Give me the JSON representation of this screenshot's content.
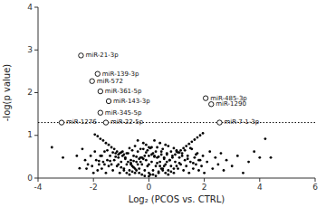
{
  "chart_data": {
    "type": "scatter",
    "xlabel": "Log₂ (PCOS vs. CTRL)",
    "ylabel": "-log(p value)",
    "xlim": [
      -4,
      6
    ],
    "ylim": [
      0,
      4
    ],
    "xticks": [
      -4,
      -2,
      0,
      2,
      4,
      6
    ],
    "yticks": [
      0,
      1,
      2,
      3,
      4
    ],
    "grid": false,
    "threshold": 1.3,
    "series": [
      {
        "color": "#000000",
        "marker": "dot",
        "x": [
          -3.5,
          -3.1,
          -2.6,
          -2.5,
          -2.4,
          -2.3,
          -2.25,
          -2.2,
          -2.1,
          -2.05,
          -2.0,
          -1.95,
          -1.9,
          -1.85,
          -1.8,
          -1.75,
          -1.7,
          -1.65,
          -1.6,
          -1.55,
          -1.5,
          -1.45,
          -1.4,
          -1.35,
          -1.3,
          -1.25,
          -1.2,
          -1.15,
          -1.1,
          -1.05,
          -1.0,
          -0.95,
          -0.9,
          -0.85,
          -0.8,
          -0.75,
          -0.7,
          -0.65,
          -0.6,
          -0.55,
          -0.5,
          -0.45,
          -0.4,
          -0.35,
          -0.3,
          -0.25,
          -0.2,
          -0.15,
          -0.1,
          -0.05,
          0.0,
          0.0,
          0.0,
          0.05,
          0.1,
          0.15,
          0.2,
          0.25,
          0.3,
          0.35,
          0.4,
          0.45,
          0.5,
          0.55,
          0.6,
          0.65,
          0.7,
          0.75,
          0.8,
          0.85,
          0.9,
          0.95,
          1.0,
          1.05,
          1.1,
          1.15,
          1.2,
          1.25,
          1.3,
          1.35,
          1.4,
          1.45,
          1.5,
          1.55,
          1.6,
          1.65,
          1.7,
          1.75,
          1.8,
          1.85,
          1.9,
          1.95,
          2.0,
          2.1,
          2.2,
          2.3,
          2.4,
          2.5,
          2.6,
          2.7,
          2.8,
          3.0,
          3.2,
          3.4,
          3.6,
          3.8,
          4.0,
          4.2,
          4.4,
          -0.1,
          0.1,
          -0.2,
          0.2,
          0.3,
          -0.3,
          0.4,
          -0.4,
          0.5,
          -0.5,
          0.6,
          -0.6,
          0.7,
          -0.7,
          0.8,
          -0.8,
          0.9,
          -0.9,
          1.0,
          -1.0,
          -0.15,
          0.15,
          -0.25,
          0.25,
          0.35,
          -0.35,
          0.45,
          -0.45,
          0.55,
          -0.55,
          0.65,
          -0.65,
          1.1,
          -1.1,
          1.2,
          -1.2,
          1.3,
          -1.3,
          1.4,
          -1.4,
          1.5,
          -1.5,
          1.6,
          -1.6,
          1.7,
          -1.7,
          1.8,
          -1.8,
          0.0,
          0.0,
          -0.05,
          0.05,
          -0.1,
          0.1,
          -0.2,
          0.2,
          -0.3,
          0.3,
          -0.4,
          0.4,
          -0.5,
          0.5,
          -0.6,
          0.6,
          -0.7,
          0.7,
          -0.8,
          0.8,
          -0.9,
          0.9,
          -1.0,
          1.0,
          -1.1,
          1.1,
          -0.15,
          0.15,
          -0.25,
          0.25,
          -0.35,
          0.35,
          -0.45,
          0.45,
          -0.55,
          0.55,
          -0.65,
          0.65,
          -0.75,
          0.75,
          -0.85,
          0.85,
          -0.95,
          0.95,
          -1.05,
          1.05,
          -1.15,
          1.15,
          -1.25,
          1.25,
          -1.35,
          1.35,
          -1.45,
          1.45,
          -1.55,
          1.55,
          -1.65,
          1.65,
          -1.75,
          1.75,
          -1.85,
          1.85,
          -1.95,
          1.95
        ],
        "values": [
          0.72,
          0.48,
          0.52,
          0.23,
          0.68,
          0.42,
          0.22,
          0.32,
          0.52,
          0.28,
          0.12,
          0.62,
          0.42,
          0.18,
          0.32,
          0.52,
          0.22,
          0.38,
          0.62,
          0.12,
          0.42,
          0.28,
          0.52,
          0.32,
          0.18,
          0.42,
          0.58,
          0.28,
          0.48,
          0.12,
          0.38,
          0.62,
          0.22,
          0.48,
          0.32,
          0.58,
          0.18,
          0.42,
          0.28,
          0.52,
          0.12,
          0.38,
          0.62,
          0.22,
          0.48,
          0.32,
          0.68,
          0.18,
          0.42,
          0.28,
          0.04,
          0.12,
          0.32,
          0.08,
          0.38,
          0.18,
          0.52,
          0.28,
          0.48,
          0.12,
          0.38,
          0.62,
          0.22,
          0.48,
          0.32,
          0.58,
          0.18,
          0.42,
          0.28,
          0.52,
          0.12,
          0.38,
          0.62,
          0.22,
          0.48,
          0.32,
          0.58,
          0.18,
          0.42,
          0.28,
          0.52,
          0.12,
          0.38,
          0.68,
          0.22,
          0.48,
          0.32,
          0.58,
          0.18,
          0.42,
          0.28,
          0.52,
          0.12,
          0.38,
          0.62,
          0.22,
          0.48,
          0.32,
          0.58,
          0.18,
          0.42,
          0.28,
          0.52,
          0.12,
          0.38,
          0.62,
          0.48,
          0.92,
          0.48,
          0.78,
          0.72,
          0.82,
          0.88,
          0.72,
          0.68,
          0.82,
          0.88,
          0.68,
          0.75,
          0.78,
          0.65,
          0.75,
          0.7,
          0.62,
          0.58,
          0.7,
          0.55,
          0.65,
          0.6,
          0.52,
          0.58,
          0.48,
          0.62,
          0.5,
          0.45,
          0.55,
          0.5,
          0.45,
          0.4,
          0.55,
          0.35,
          0.6,
          0.55,
          0.52,
          0.5,
          0.65,
          0.6,
          0.45,
          0.4,
          0.7,
          0.65,
          0.35,
          0.32,
          0.55,
          0.52,
          0.42,
          0.4,
          0.52,
          0.72,
          0.65,
          0.7,
          0.6,
          0.55,
          0.45,
          0.5,
          0.38,
          0.35,
          0.32,
          0.28,
          0.22,
          0.18,
          0.15,
          0.12,
          0.08,
          0.08,
          0.12,
          0.15,
          0.18,
          0.22,
          0.25,
          0.28,
          0.32,
          0.35,
          0.05,
          0.08,
          0.08,
          0.05,
          0.12,
          0.15,
          0.18,
          0.22,
          0.25,
          0.28,
          0.32,
          0.38,
          0.38,
          0.42,
          0.45,
          0.48,
          0.52,
          0.55,
          0.58,
          0.6,
          0.62,
          0.65,
          0.68,
          0.7,
          0.72,
          0.75,
          0.78,
          0.8,
          0.82,
          0.85,
          0.88,
          0.9,
          0.92,
          0.95,
          0.98,
          1.0,
          1.02,
          1.05
        ]
      },
      {
        "color": "#000000",
        "marker": "open-circle",
        "x": [
          -2.45,
          -1.85,
          -2.05,
          -1.75,
          -1.45,
          -1.75,
          -1.55,
          -3.15,
          2.05,
          2.25,
          2.55
        ],
        "values": [
          2.87,
          2.44,
          2.27,
          2.03,
          1.8,
          1.53,
          1.3,
          1.3,
          1.87,
          1.73,
          1.3
        ],
        "labels": [
          "miR-21-3p",
          "miR-139-3p",
          "miR-572",
          "miR-361-5p",
          "miR-143-3p",
          "miR-345-5p",
          "miR-22-5p",
          "miR-1276",
          "miR-485-3p",
          "miR-1290",
          "miR-7-1-3p"
        ]
      }
    ]
  }
}
